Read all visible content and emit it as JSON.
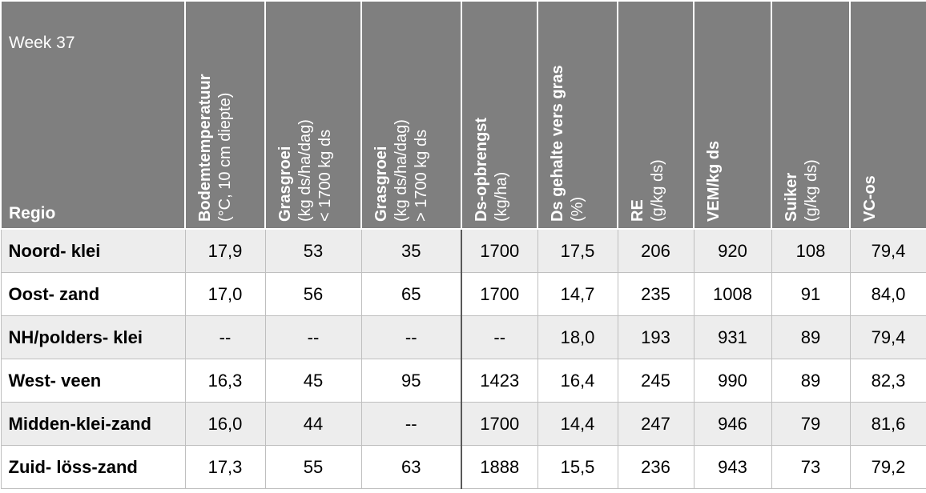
{
  "header": {
    "week": "Week 37",
    "regio": "Regio"
  },
  "columns": [
    {
      "lines": [
        "Bodemtemperatuur",
        "(°C, 10 cm diepte)"
      ]
    },
    {
      "lines": [
        "Grasgroei",
        "(kg ds/ha/dag)",
        "< 1700 kg ds"
      ]
    },
    {
      "lines": [
        "Grasgroei",
        "(kg ds/ha/dag)",
        "> 1700 kg ds"
      ]
    },
    {
      "lines": [
        "Ds-opbrengst",
        "(kg/ha)"
      ]
    },
    {
      "lines": [
        "Ds gehalte vers gras",
        "(%)"
      ]
    },
    {
      "lines": [
        "RE",
        "(g/kg ds)"
      ]
    },
    {
      "lines": [
        "VEM/kg ds"
      ]
    },
    {
      "lines": [
        "Suiker",
        "(g/kg ds)"
      ]
    },
    {
      "lines": [
        "VC-os"
      ]
    }
  ],
  "rows": [
    {
      "regio": "Noord- klei",
      "values": [
        "17,9",
        "53",
        "35",
        "1700",
        "17,5",
        "206",
        "920",
        "108",
        "79,4"
      ]
    },
    {
      "regio": "Oost- zand",
      "values": [
        "17,0",
        "56",
        "65",
        "1700",
        "14,7",
        "235",
        "1008",
        "91",
        "84,0"
      ]
    },
    {
      "regio": "NH/polders- klei",
      "values": [
        "--",
        "--",
        "--",
        "--",
        "18,0",
        "193",
        "931",
        "89",
        "79,4"
      ]
    },
    {
      "regio": "West- veen",
      "values": [
        "16,3",
        "45",
        "95",
        "1423",
        "16,4",
        "245",
        "990",
        "89",
        "82,3"
      ]
    },
    {
      "regio": "Midden-klei-zand",
      "values": [
        "16,0",
        "44",
        "--",
        "1700",
        "14,4",
        "247",
        "946",
        "79",
        "81,6"
      ]
    },
    {
      "regio": "Zuid- löss-zand",
      "values": [
        "17,3",
        "55",
        "63",
        "1888",
        "15,5",
        "236",
        "943",
        "73",
        "79,2"
      ]
    }
  ]
}
